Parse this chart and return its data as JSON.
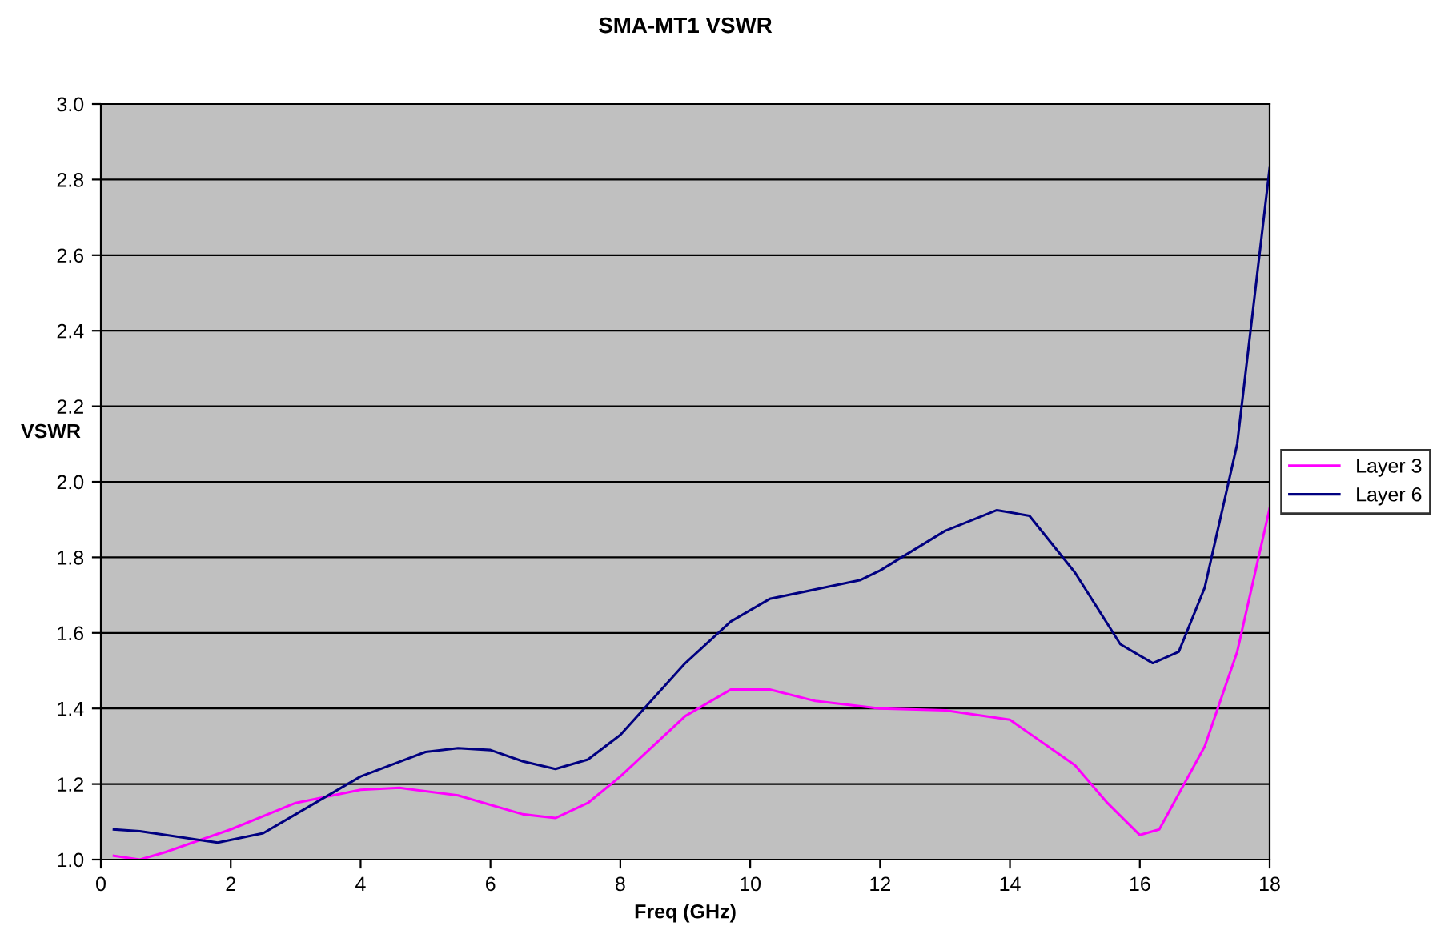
{
  "chart_data": {
    "type": "line",
    "title": "SMA-MT1 VSWR",
    "xlabel": "Freq (GHz)",
    "ylabel": "VSWR",
    "xlim": [
      0,
      18
    ],
    "xticks": [
      0,
      2,
      4,
      6,
      8,
      10,
      12,
      14,
      16,
      18
    ],
    "ylim": [
      1.0,
      3.0
    ],
    "yticks": [
      {
        "value": 1.0,
        "label": "1.0"
      },
      {
        "value": 1.2,
        "label": "1.2"
      },
      {
        "value": 1.4,
        "label": "1.4"
      },
      {
        "value": 1.6,
        "label": "1.6"
      },
      {
        "value": 1.8,
        "label": "1.8"
      },
      {
        "value": 2.0,
        "label": "2.0"
      },
      {
        "value": 2.2,
        "label": "2.2"
      },
      {
        "value": 2.4,
        "label": "2.4"
      },
      {
        "value": 2.6,
        "label": "2.6"
      },
      {
        "value": 2.8,
        "label": "2.8"
      },
      {
        "value": 3.0,
        "label": "3.0"
      }
    ],
    "grid": "y",
    "legend": "right",
    "marker": "none",
    "line_style": "solid",
    "series": [
      {
        "name": "Layer 3",
        "color": "#ff00ff",
        "x": [
          0.2,
          0.6,
          1,
          2,
          3,
          4,
          4.6,
          5.5,
          6.5,
          7,
          7.5,
          8,
          9,
          9.7,
          10.3,
          11,
          12,
          13,
          14,
          15,
          15.5,
          16,
          16.3,
          17,
          17.5,
          18
        ],
        "values": [
          1.01,
          1.0,
          1.02,
          1.08,
          1.15,
          1.185,
          1.19,
          1.17,
          1.12,
          1.11,
          1.15,
          1.22,
          1.38,
          1.45,
          1.45,
          1.42,
          1.4,
          1.395,
          1.37,
          1.25,
          1.15,
          1.065,
          1.08,
          1.3,
          1.55,
          1.93
        ]
      },
      {
        "name": "Layer 6",
        "color": "#000080",
        "x": [
          0.2,
          0.6,
          1,
          1.8,
          2.5,
          3,
          4,
          5,
          5.5,
          6,
          6.5,
          7,
          7.5,
          8,
          9,
          9.7,
          10.3,
          11,
          11.7,
          12,
          13,
          13.8,
          14.3,
          15,
          15.7,
          16.2,
          16.6,
          17,
          17.5,
          18
        ],
        "values": [
          1.08,
          1.075,
          1.065,
          1.045,
          1.07,
          1.12,
          1.22,
          1.285,
          1.295,
          1.29,
          1.26,
          1.24,
          1.265,
          1.33,
          1.52,
          1.63,
          1.69,
          1.715,
          1.74,
          1.765,
          1.87,
          1.925,
          1.91,
          1.76,
          1.57,
          1.52,
          1.55,
          1.72,
          2.1,
          2.83
        ]
      }
    ]
  }
}
